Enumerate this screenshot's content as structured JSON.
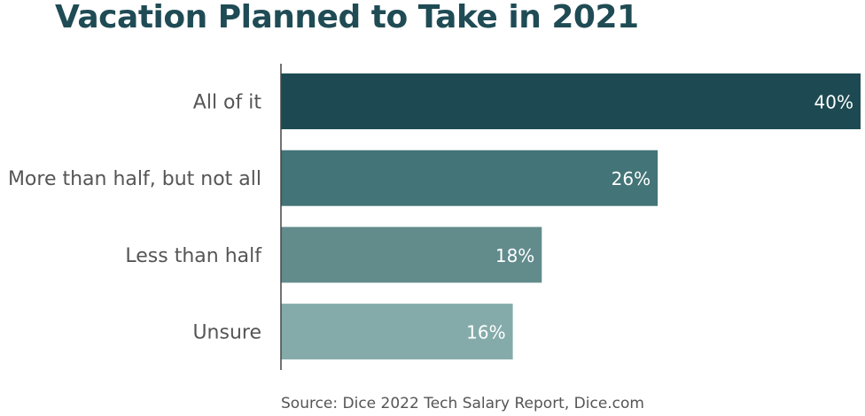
{
  "title": "Vacation Planned to Take in 2021",
  "source": "Source: Dice 2022 Tech Salary Report, Dice.com",
  "colors": {
    "title": "#1f4b55",
    "axis": "#444444",
    "category_text": "#555555",
    "value_text": "#ffffff",
    "bars": [
      "#1d4a52",
      "#437477",
      "#628b8c",
      "#84abaa"
    ]
  },
  "chart_data": {
    "type": "bar",
    "orientation": "horizontal",
    "title": "Vacation Planned to Take in 2021",
    "categories": [
      "All of it",
      "More than half, but not all",
      "Less than half",
      "Unsure"
    ],
    "values": [
      40,
      26,
      18,
      16
    ],
    "value_labels": [
      "40%",
      "26%",
      "18%",
      "16%"
    ],
    "xlim": [
      0,
      40
    ],
    "grid": false,
    "legend": "none"
  }
}
